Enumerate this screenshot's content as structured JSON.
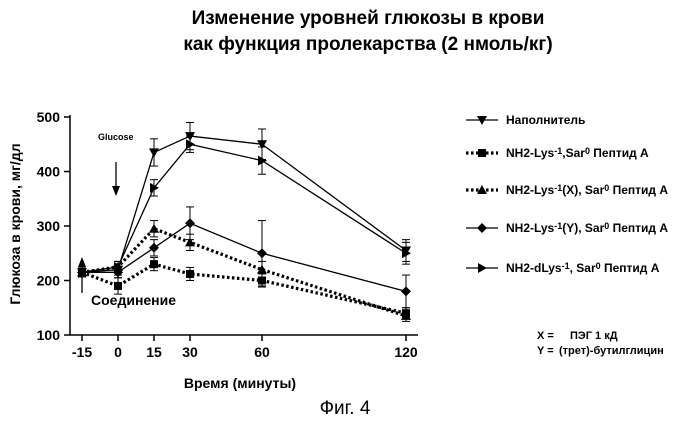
{
  "chart_data": {
    "type": "line",
    "title_line1": "Изменение уровней глюкозы в крови",
    "title_line2": "как функция пролекарства (2 нмоль/кг)",
    "xlabel": "Время (минуты)",
    "ylabel": "Глюкоза в крови, мг/дл",
    "xlim": [
      -20,
      125
    ],
    "ylim": [
      100,
      500
    ],
    "xticks": [
      -15,
      0,
      15,
      30,
      60,
      120
    ],
    "yticks": [
      100,
      200,
      300,
      400,
      500
    ],
    "grid": false,
    "legend_position": "right",
    "series": [
      {
        "name": "Наполнитель",
        "marker": "triangle-down",
        "dash": "solid",
        "x": [
          -15,
          0,
          15,
          30,
          60,
          120
        ],
        "y": [
          215,
          220,
          435,
          465,
          450,
          255
        ],
        "err": [
          8,
          10,
          25,
          25,
          28,
          20
        ]
      },
      {
        "name_main": "NH2-Lys",
        "name_sup1": "-1",
        "name_mid": ",Sar",
        "name_sup2": "0",
        "name_tail": " Пептид А",
        "marker": "square",
        "dash": "dotted",
        "x": [
          -15,
          0,
          15,
          30,
          60,
          120
        ],
        "y": [
          215,
          190,
          230,
          212,
          200,
          140
        ],
        "err": [
          8,
          15,
          12,
          12,
          12,
          10
        ]
      },
      {
        "name_main": "NH2-Lys",
        "name_sup1": "-1",
        "name_mid": "(X), Sar",
        "name_sup2": "0",
        "name_tail": " Пептид А",
        "marker": "triangle-up",
        "dash": "dotted",
        "x": [
          -15,
          0,
          15,
          30,
          60,
          120
        ],
        "y": [
          215,
          225,
          295,
          270,
          220,
          135
        ],
        "err": [
          8,
          10,
          15,
          15,
          15,
          10
        ]
      },
      {
        "name_main": "NH2-Lys",
        "name_sup1": "-1",
        "name_mid": "(Y), Sar",
        "name_sup2": "0",
        "name_tail": " Пептид А",
        "marker": "diamond",
        "dash": "solid",
        "x": [
          -15,
          0,
          15,
          30,
          60,
          120
        ],
        "y": [
          215,
          215,
          260,
          305,
          250,
          180
        ],
        "err": [
          8,
          10,
          15,
          30,
          60,
          30
        ]
      },
      {
        "name_main": "NH2-dLys",
        "name_sup1": "-1",
        "name_mid": ", Sar",
        "name_sup2": "0",
        "name_tail": " Пептид А",
        "marker": "triangle-right",
        "dash": "solid",
        "x": [
          -15,
          0,
          15,
          30,
          60,
          120
        ],
        "y": [
          215,
          225,
          370,
          450,
          420,
          250
        ],
        "err": [
          8,
          10,
          15,
          15,
          25,
          20
        ]
      }
    ],
    "annotations": {
      "glucose": "Glucose",
      "compound": "Соединение"
    },
    "notes": [
      {
        "key": "X =",
        "value": "ПЭГ 1 кД"
      },
      {
        "key": "Y =",
        "value": "(трет)-бутилглицин"
      }
    ],
    "figure_label": "Фиг. 4"
  }
}
